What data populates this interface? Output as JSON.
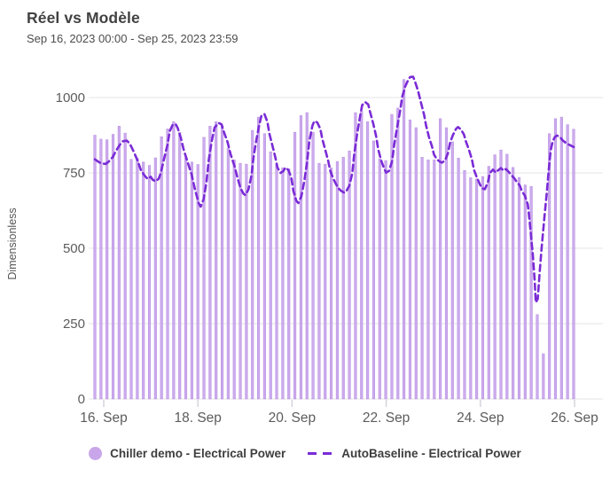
{
  "header": {
    "title": "Réel vs Modèle",
    "subtitle": "Sep 16, 2023 00:00 - Sep 25, 2023 23:59"
  },
  "legend": [
    {
      "label": "Chiller demo - Electrical Power",
      "marker": "circle",
      "color": "#c9a6ea"
    },
    {
      "label": "AutoBaseline - Electrical Power",
      "marker": "dashed-line",
      "color": "#7a2bd6"
    }
  ],
  "colors": {
    "bar_fill": "#cdabed",
    "bar_edge": "#b58ce2",
    "line": "#7a2bd6",
    "gridline": "#e4e4e4",
    "tick": "#d4d4dc",
    "axis_text": "#5c5c5c"
  },
  "chart_data": {
    "type": "bar+line",
    "title": "Réel vs Modèle",
    "ylabel": "Dimensionless",
    "ylim": [
      0,
      1100
    ],
    "y_ticks": [
      0,
      250,
      500,
      750,
      1000
    ],
    "x_ticks": [
      "16. Sep",
      "18. Sep",
      "20. Sep",
      "22. Sep",
      "24. Sep",
      "26. Sep"
    ],
    "x_range": {
      "start": "Sep 16, 2023 00:00",
      "end": "Sep 26, 2023 00:00",
      "tick_interval_days": 2
    },
    "grid": true,
    "bar_series": {
      "name": "Chiller demo - Electrical Power",
      "interval_hours": 3,
      "start": "Sep 16, 2023 00:00",
      "values": [
        875,
        862,
        860,
        878,
        905,
        882,
        795,
        798,
        786,
        775,
        800,
        870,
        896,
        920,
        885,
        800,
        786,
        778,
        868,
        905,
        920,
        906,
        832,
        793,
        782,
        779,
        891,
        935,
        880,
        820,
        779,
        767,
        764,
        885,
        940,
        950,
        885,
        782,
        779,
        767,
        788,
        802,
        823,
        950,
        955,
        920,
        856,
        797,
        791,
        944,
        965,
        1060,
        926,
        900,
        802,
        793,
        793,
        930,
        900,
        853,
        799,
        758,
        734,
        730,
        738,
        772,
        810,
        826,
        812,
        768,
        735,
        710,
        705,
        280,
        150,
        880,
        930,
        935,
        910,
        895
      ]
    },
    "line_series": {
      "name": "AutoBaseline - Electrical Power",
      "style": "dashed",
      "points_hours_value": [
        [
          0,
          795
        ],
        [
          2,
          786
        ],
        [
          3.5,
          781
        ],
        [
          5.5,
          780
        ],
        [
          7,
          788
        ],
        [
          9,
          803
        ],
        [
          10.5,
          822
        ],
        [
          12.5,
          843
        ],
        [
          14,
          855
        ],
        [
          16,
          857
        ],
        [
          17.5,
          847
        ],
        [
          19.5,
          820
        ],
        [
          21.5,
          789
        ],
        [
          23,
          760
        ],
        [
          25,
          740
        ],
        [
          26.5,
          730
        ],
        [
          28,
          737
        ],
        [
          29,
          727
        ],
        [
          30.5,
          722
        ],
        [
          32,
          731
        ],
        [
          33,
          749
        ],
        [
          34.5,
          791
        ],
        [
          36.5,
          846
        ],
        [
          37.5,
          888
        ],
        [
          39,
          910
        ],
        [
          40.5,
          912
        ],
        [
          41.5,
          899
        ],
        [
          43,
          868
        ],
        [
          44.5,
          828
        ],
        [
          46.5,
          786
        ],
        [
          48.5,
          745
        ],
        [
          50,
          700
        ],
        [
          52,
          650
        ],
        [
          53,
          638
        ],
        [
          54.5,
          662
        ],
        [
          56,
          722
        ],
        [
          57,
          790
        ],
        [
          58.5,
          852
        ],
        [
          60,
          900
        ],
        [
          62,
          916
        ],
        [
          63.5,
          911
        ],
        [
          64.5,
          889
        ],
        [
          66.5,
          853
        ],
        [
          68,
          813
        ],
        [
          70,
          772
        ],
        [
          71.5,
          733
        ],
        [
          73,
          699
        ],
        [
          74.5,
          681
        ],
        [
          75.5,
          676
        ],
        [
          77,
          696
        ],
        [
          78.5,
          741
        ],
        [
          79.5,
          801
        ],
        [
          81,
          862
        ],
        [
          82.5,
          912
        ],
        [
          83.5,
          940
        ],
        [
          85,
          945
        ],
        [
          86.5,
          919
        ],
        [
          87.5,
          879
        ],
        [
          89,
          840
        ],
        [
          90.5,
          801
        ],
        [
          91.5,
          768
        ],
        [
          93,
          750
        ],
        [
          94.5,
          756
        ],
        [
          95.5,
          768
        ],
        [
          97,
          759
        ],
        [
          98.5,
          734
        ],
        [
          99.5,
          690
        ],
        [
          101,
          657
        ],
        [
          102,
          650
        ],
        [
          103.5,
          672
        ],
        [
          105,
          724
        ],
        [
          106.5,
          792
        ],
        [
          107.5,
          856
        ],
        [
          109,
          906
        ],
        [
          110,
          922
        ],
        [
          111.5,
          917
        ],
        [
          113,
          896
        ],
        [
          114,
          863
        ],
        [
          115.5,
          826
        ],
        [
          117,
          788
        ],
        [
          118,
          757
        ],
        [
          119.5,
          731
        ],
        [
          121,
          711
        ],
        [
          122,
          699
        ],
        [
          123.5,
          690
        ],
        [
          125,
          684
        ],
        [
          126,
          689
        ],
        [
          127.5,
          707
        ],
        [
          129,
          748
        ],
        [
          130,
          812
        ],
        [
          131.5,
          881
        ],
        [
          133,
          941
        ],
        [
          134,
          975
        ],
        [
          135.5,
          985
        ],
        [
          137,
          977
        ],
        [
          138,
          951
        ],
        [
          139.5,
          914
        ],
        [
          141,
          871
        ],
        [
          142,
          829
        ],
        [
          143.5,
          791
        ],
        [
          145,
          764
        ],
        [
          146,
          751
        ],
        [
          147.5,
          757
        ],
        [
          149,
          790
        ],
        [
          150,
          841
        ],
        [
          151.5,
          901
        ],
        [
          153,
          956
        ],
        [
          154,
          1001
        ],
        [
          155.5,
          1036
        ],
        [
          157,
          1058
        ],
        [
          158,
          1068
        ],
        [
          159.5,
          1069
        ],
        [
          160.5,
          1053
        ],
        [
          162,
          1022
        ],
        [
          163.5,
          982
        ],
        [
          165,
          943
        ],
        [
          166,
          908
        ],
        [
          167.5,
          868
        ],
        [
          169,
          837
        ],
        [
          170,
          811
        ],
        [
          171.5,
          794
        ],
        [
          173,
          787
        ],
        [
          174,
          784
        ],
        [
          175.5,
          791
        ],
        [
          177,
          816
        ],
        [
          178,
          849
        ],
        [
          179.5,
          876
        ],
        [
          181,
          896
        ],
        [
          182,
          902
        ],
        [
          183.5,
          894
        ],
        [
          185,
          877
        ],
        [
          186,
          854
        ],
        [
          187.5,
          827
        ],
        [
          189,
          794
        ],
        [
          190,
          761
        ],
        [
          191.5,
          734
        ],
        [
          193,
          712
        ],
        [
          194,
          699
        ],
        [
          195.5,
          696
        ],
        [
          197,
          719
        ],
        [
          198,
          749
        ],
        [
          199.5,
          761
        ],
        [
          201,
          751
        ],
        [
          202,
          758
        ],
        [
          203.5,
          766
        ],
        [
          205,
          757
        ],
        [
          206,
          763
        ],
        [
          207.5,
          753
        ],
        [
          209,
          741
        ],
        [
          210,
          734
        ],
        [
          211.5,
          720
        ],
        [
          213,
          708
        ],
        [
          214,
          690
        ],
        [
          215.5,
          675
        ],
        [
          217,
          645
        ],
        [
          218,
          585
        ],
        [
          219.5,
          480
        ],
        [
          220.5,
          390
        ],
        [
          221,
          320
        ],
        [
          222,
          332
        ],
        [
          223,
          425
        ],
        [
          224,
          505
        ],
        [
          225.5,
          615
        ],
        [
          226.5,
          680
        ],
        [
          227.5,
          760
        ],
        [
          228.5,
          825
        ],
        [
          229.5,
          855
        ],
        [
          230.5,
          868
        ],
        [
          231.5,
          874
        ],
        [
          233,
          870
        ],
        [
          234.5,
          858
        ],
        [
          236,
          850
        ],
        [
          237.5,
          844
        ],
        [
          239,
          839
        ],
        [
          240,
          836
        ]
      ]
    }
  }
}
